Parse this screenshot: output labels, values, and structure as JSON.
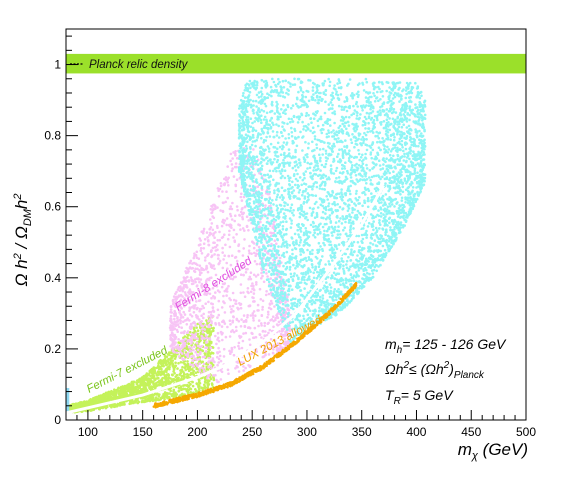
{
  "chart_data": {
    "type": "scatter",
    "xlabel": "m_χ (GeV)",
    "ylabel": "Ω h² / Ω_DM h²",
    "xlim": [
      80,
      500
    ],
    "ylim": [
      0,
      1.1
    ],
    "x_ticks": [
      100,
      150,
      200,
      250,
      300,
      350,
      400,
      450,
      500
    ],
    "y_ticks": [
      0,
      0.2,
      0.4,
      0.6,
      0.8,
      1
    ],
    "y_tick_labels": [
      "0",
      "0.2",
      "0.4",
      "0.6",
      "0.8",
      "1"
    ],
    "band": {
      "label": "Planck relic density",
      "y_range": [
        0.975,
        1.03
      ],
      "color": "#9be02a"
    },
    "regions": [
      {
        "label": "Fermi-7 excluded",
        "color": "#c4f25a",
        "x_range": [
          80,
          215
        ],
        "lower_y": [
          [
            80,
            0.02
          ],
          [
            100,
            0.025
          ],
          [
            150,
            0.05
          ],
          [
            200,
            0.07
          ],
          [
            215,
            0.08
          ]
        ],
        "upper_y": [
          [
            80,
            0.04
          ],
          [
            100,
            0.055
          ],
          [
            150,
            0.12
          ],
          [
            200,
            0.27
          ],
          [
            215,
            0.3
          ]
        ]
      },
      {
        "label": "Fermi-8 excluded",
        "color": "#f7c4f5",
        "x_range": [
          175,
          285
        ],
        "lower_y": [
          [
            175,
            0.2
          ],
          [
            215,
            0.1
          ],
          [
            230,
            0.12
          ],
          [
            250,
            0.15
          ],
          [
            285,
            0.2
          ]
        ],
        "upper_y": [
          [
            175,
            0.32
          ],
          [
            200,
            0.5
          ],
          [
            215,
            0.62
          ],
          [
            230,
            0.75
          ],
          [
            250,
            0.78
          ],
          [
            265,
            0.65
          ],
          [
            285,
            0.3
          ]
        ]
      },
      {
        "label": "",
        "color": "#8ff5f5",
        "x_range": [
          238,
          408
        ],
        "lower_y": [
          [
            238,
            0.7
          ],
          [
            260,
            0.42
          ],
          [
            285,
            0.22
          ],
          [
            300,
            0.25
          ],
          [
            330,
            0.3
          ],
          [
            360,
            0.4
          ],
          [
            390,
            0.55
          ],
          [
            408,
            0.67
          ]
        ],
        "upper_y": [
          [
            238,
            0.88
          ],
          [
            245,
            0.96
          ],
          [
            300,
            0.96
          ],
          [
            350,
            0.96
          ],
          [
            400,
            0.95
          ],
          [
            408,
            0.9
          ]
        ]
      }
    ],
    "lux_allowed": {
      "label": "LUX 2013 allowed",
      "color": "#f5a800",
      "curve": [
        [
          160,
          0.04
        ],
        [
          200,
          0.07
        ],
        [
          230,
          0.1
        ],
        [
          260,
          0.15
        ],
        [
          290,
          0.22
        ],
        [
          320,
          0.3
        ],
        [
          345,
          0.38
        ]
      ]
    },
    "white_gap_curve": [
      [
        80,
        0.02
      ],
      [
        150,
        0.07
      ],
      [
        200,
        0.12
      ],
      [
        230,
        0.16
      ],
      [
        260,
        0.22
      ],
      [
        290,
        0.3
      ],
      [
        320,
        0.42
      ],
      [
        350,
        0.55
      ],
      [
        370,
        0.66
      ]
    ],
    "low_mass_strip": {
      "color": "#8fd9f2",
      "x_range": [
        80,
        83
      ],
      "y_range": [
        0.02,
        0.09
      ]
    },
    "annotations": [
      {
        "m": "m",
        "m_sub": "h",
        "rest": "= 125 - 126 GeV"
      },
      {
        "lhs": "Ωh",
        "lhs_sup": "2",
        "rel": "≤ (Ωh",
        "rel_sup": "2",
        "rel_close": ")",
        "rel_sub": "Planck"
      },
      {
        "t": "T",
        "t_sub": "R",
        "rest": "= 5 GeV"
      }
    ]
  }
}
